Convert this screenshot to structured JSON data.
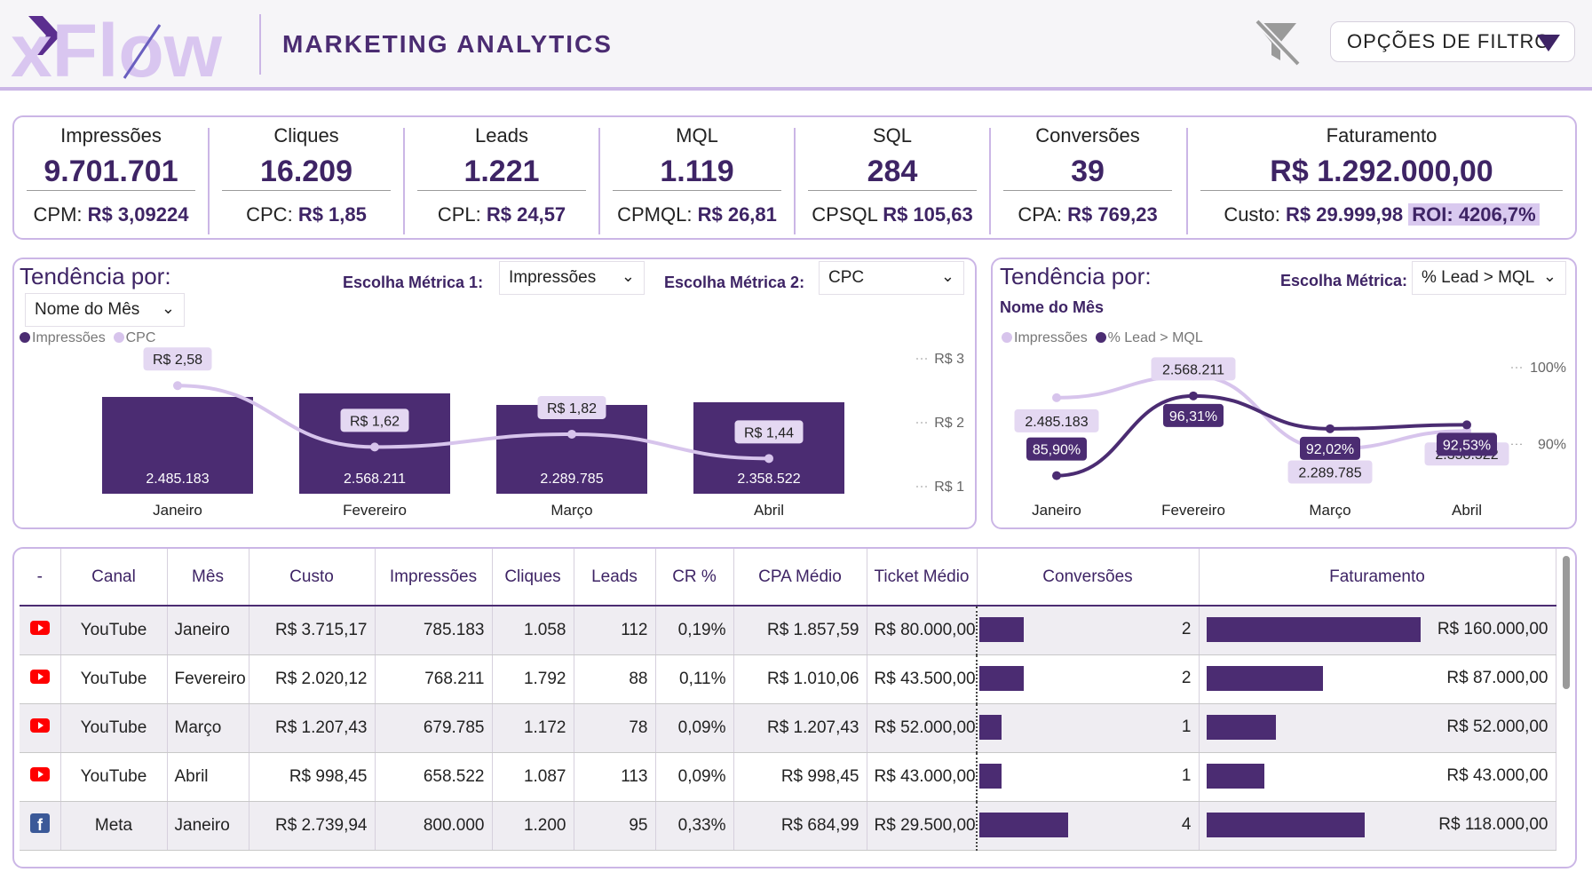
{
  "header": {
    "logo_text": "xFlow",
    "title": "MARKETING ANALYTICS",
    "filter_button_label": "OPÇÕES DE FILTRO"
  },
  "kpis": [
    {
      "label": "Impressões",
      "value": "9.701.701",
      "sub_label": "CPM:",
      "sub_value": "R$ 3,09224"
    },
    {
      "label": "Cliques",
      "value": "16.209",
      "sub_label": "CPC:",
      "sub_value": "R$ 1,85"
    },
    {
      "label": "Leads",
      "value": "1.221",
      "sub_label": "CPL:",
      "sub_value": "R$ 24,57"
    },
    {
      "label": "MQL",
      "value": "1.119",
      "sub_label": "CPMQL:",
      "sub_value": "R$ 26,81"
    },
    {
      "label": "SQL",
      "value": "284",
      "sub_label": "CPSQL",
      "sub_value": "R$ 105,63"
    },
    {
      "label": "Conversões",
      "value": "39",
      "sub_label": "CPA:",
      "sub_value": "R$ 769,23"
    },
    {
      "label": "Faturamento",
      "value": "R$ 1.292.000,00",
      "sub_label": "Custo:",
      "sub_value": "R$ 29.999,98",
      "roi": "ROI: 4206,7%"
    }
  ],
  "trend_left": {
    "title": "Tendência por:",
    "period_select": "Nome do Mês",
    "metric1_label": "Escolha Métrica 1:",
    "metric1_value": "Impressões",
    "metric2_label": "Escolha Métrica 2:",
    "metric2_value": "CPC",
    "legend": [
      "Impressões",
      "CPC"
    ]
  },
  "trend_right": {
    "title": "Tendência por:",
    "subtitle": "Nome do Mês",
    "metric_label": "Escolha Métrica:",
    "metric_value": "% Lead > MQL",
    "legend": [
      "Impressões",
      "% Lead > MQL"
    ]
  },
  "chart_data": [
    {
      "type": "bar",
      "categories": [
        "Janeiro",
        "Fevereiro",
        "Março",
        "Abril"
      ],
      "series": [
        {
          "name": "Impressões",
          "kind": "bar",
          "values": [
            2485183,
            2568211,
            2289785,
            2358522
          ],
          "labels": [
            "2.485.183",
            "2.568.211",
            "2.289.785",
            "2.358.522"
          ],
          "color": "#4b2c72"
        },
        {
          "name": "CPC",
          "kind": "line",
          "axis": "right",
          "values": [
            2.58,
            1.62,
            1.82,
            1.44
          ],
          "labels": [
            "R$ 2,58",
            "R$ 1,62",
            "R$ 1,82",
            "R$ 1,44"
          ],
          "color": "#d7c4ec"
        }
      ],
      "y_right_ticks": [
        "R$ 3",
        "R$ 2",
        "R$ 1"
      ],
      "y_right_lim": [
        1,
        3
      ],
      "legend_position": "top-left"
    },
    {
      "type": "line",
      "categories": [
        "Janeiro",
        "Fevereiro",
        "Março",
        "Abril"
      ],
      "series": [
        {
          "name": "Impressões",
          "axis": "left",
          "values": [
            2485183,
            2568211,
            2289785,
            2358522
          ],
          "labels": [
            "2.485.183",
            "2.568.211",
            "2.289.785",
            "2.358.522"
          ],
          "color": "#d7c4ec"
        },
        {
          "name": "% Lead > MQL",
          "axis": "right",
          "values": [
            85.9,
            96.31,
            92.02,
            92.53
          ],
          "labels": [
            "85,90%",
            "96,31%",
            "92,02%",
            "92,53%"
          ],
          "color": "#4b2c72"
        }
      ],
      "y_right_ticks": [
        "100%",
        "90%"
      ],
      "y_right_lim": [
        84,
        100
      ],
      "legend_position": "top-left"
    }
  ],
  "table": {
    "headers": [
      "-",
      "Canal",
      "Mês",
      "Custo",
      "Impressões",
      "Cliques",
      "Leads",
      "CR %",
      "CPA Médio",
      "Ticket Médio",
      "Conversões",
      "Faturamento"
    ],
    "rows": [
      {
        "icon": "youtube-icon",
        "canal": "YouTube",
        "mes": "Janeiro",
        "custo": "R$ 3.715,17",
        "impressoes": "785.183",
        "cliques": "1.058",
        "leads": "112",
        "cr": "0,19%",
        "cpa": "R$ 1.857,59",
        "ticket": "R$ 80.000,00",
        "conversoes": 2,
        "conversoes_label": "2",
        "faturamento": 160000,
        "faturamento_label": "R$ 160.000,00"
      },
      {
        "icon": "youtube-icon",
        "canal": "YouTube",
        "mes": "Fevereiro",
        "custo": "R$ 2.020,12",
        "impressoes": "768.211",
        "cliques": "1.792",
        "leads": "88",
        "cr": "0,11%",
        "cpa": "R$ 1.010,06",
        "ticket": "R$ 43.500,00",
        "conversoes": 2,
        "conversoes_label": "2",
        "faturamento": 87000,
        "faturamento_label": "R$ 87.000,00"
      },
      {
        "icon": "youtube-icon",
        "canal": "YouTube",
        "mes": "Março",
        "custo": "R$ 1.207,43",
        "impressoes": "679.785",
        "cliques": "1.172",
        "leads": "78",
        "cr": "0,09%",
        "cpa": "R$ 1.207,43",
        "ticket": "R$ 52.000,00",
        "conversoes": 1,
        "conversoes_label": "1",
        "faturamento": 52000,
        "faturamento_label": "R$ 52.000,00"
      },
      {
        "icon": "youtube-icon",
        "canal": "YouTube",
        "mes": "Abril",
        "custo": "R$ 998,45",
        "impressoes": "658.522",
        "cliques": "1.087",
        "leads": "113",
        "cr": "0,09%",
        "cpa": "R$ 998,45",
        "ticket": "R$ 43.000,00",
        "conversoes": 1,
        "conversoes_label": "1",
        "faturamento": 43000,
        "faturamento_label": "R$ 43.000,00"
      },
      {
        "icon": "facebook-icon",
        "canal": "Meta",
        "mes": "Janeiro",
        "custo": "R$ 2.739,94",
        "impressoes": "800.000",
        "cliques": "1.200",
        "leads": "95",
        "cr": "0,33%",
        "cpa": "R$ 684,99",
        "ticket": "R$ 29.500,00",
        "conversoes": 4,
        "conversoes_label": "4",
        "faturamento": 118000,
        "faturamento_label": "R$ 118.000,00"
      }
    ],
    "conversoes_max": 8,
    "faturamento_max": 170000
  },
  "colors": {
    "primary": "#4b2c72",
    "accent_light": "#d7c4ec",
    "border": "#cbb6e6",
    "youtube": "#ff0000",
    "facebook": "#3b5998"
  }
}
